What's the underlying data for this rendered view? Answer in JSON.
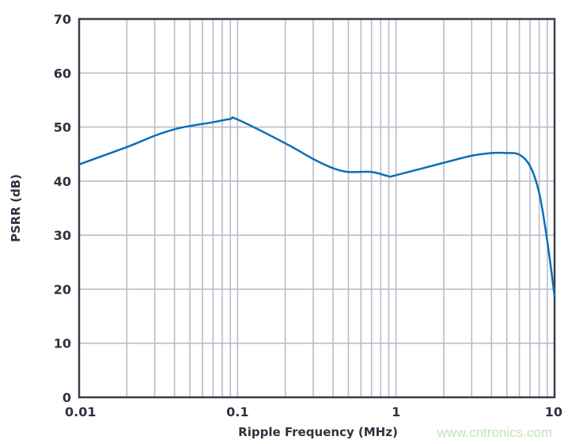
{
  "chart_data": {
    "type": "line",
    "title": "",
    "xlabel": "Ripple Frequency (MHz)",
    "ylabel": "PSRR (dB)",
    "xscale": "log",
    "xlim": [
      0.01,
      10
    ],
    "ylim": [
      0,
      70
    ],
    "xticks": [
      0.01,
      0.1,
      1,
      10
    ],
    "xtick_labels": [
      "0.01",
      "0.1",
      "1",
      "10"
    ],
    "yticks": [
      0,
      10,
      20,
      30,
      40,
      50,
      60,
      70
    ],
    "ytick_labels": [
      "0",
      "10",
      "20",
      "30",
      "40",
      "50",
      "60",
      "70"
    ],
    "grid": true,
    "series": [
      {
        "color": "#0b6fb8",
        "x": [
          0.01,
          0.02,
          0.03,
          0.04,
          0.05,
          0.07,
          0.09,
          0.1,
          0.2,
          0.3,
          0.4,
          0.5,
          0.7,
          0.9,
          1,
          2,
          3,
          4,
          5,
          6,
          7,
          8,
          9,
          10
        ],
        "y": [
          43.1,
          46.3,
          48.4,
          49.6,
          50.2,
          50.9,
          51.5,
          51.4,
          47.0,
          44.1,
          42.4,
          41.7,
          41.7,
          40.9,
          41.1,
          43.4,
          44.7,
          45.2,
          45.2,
          44.9,
          42.8,
          37.8,
          28.9,
          18.7
        ]
      }
    ]
  },
  "watermark": "www.cntronics.com",
  "colors": {
    "grid": "#b9bdc9",
    "axis": "#3a3d48",
    "line": "#0b6fb8"
  }
}
